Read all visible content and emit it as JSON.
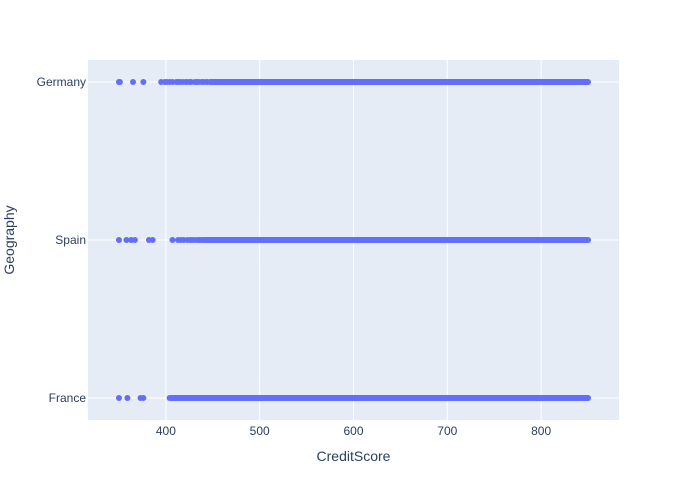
{
  "chart_data": {
    "type": "scatter",
    "xlabel": "CreditScore",
    "ylabel": "Geography",
    "xlim": [
      317,
      883
    ],
    "x_ticks": [
      400,
      500,
      600,
      700,
      800
    ],
    "categories": [
      "France",
      "Spain",
      "Germany"
    ],
    "grid": true,
    "colors": {
      "plot_background": "#e5ecf6",
      "grid": "#ffffff",
      "marker": "#636efa",
      "text": "#2a3f5f"
    },
    "series": [
      {
        "category": "Germany",
        "isolated_points": [
          350,
          351,
          365,
          376,
          395,
          399,
          401,
          404,
          407,
          411,
          413,
          415,
          418,
          421,
          422,
          425,
          427,
          431,
          433,
          435,
          438,
          440,
          443,
          444
        ],
        "dense_range": [
          447,
          850
        ]
      },
      {
        "category": "Spain",
        "isolated_points": [
          350,
          358,
          363,
          367,
          382,
          386,
          407,
          413,
          416,
          419,
          423,
          426,
          428,
          431,
          434,
          436,
          438,
          440
        ],
        "dense_range": [
          442,
          850
        ]
      },
      {
        "category": "France",
        "isolated_points": [
          350,
          359,
          373,
          376
        ],
        "dense_range": [
          404,
          850
        ]
      }
    ]
  }
}
